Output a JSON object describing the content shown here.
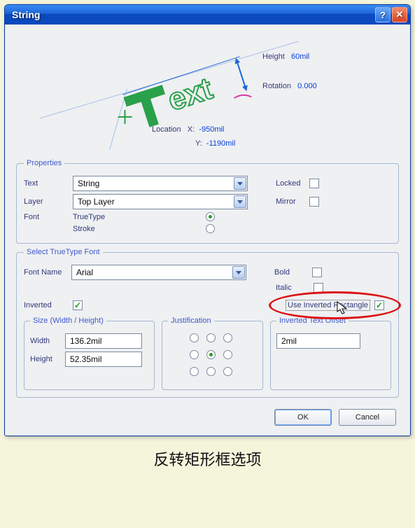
{
  "window": {
    "title": "String"
  },
  "preview": {
    "text_sample": "Text",
    "height_label": "Height",
    "height_value": "60mil",
    "rotation_label": "Rotation",
    "rotation_value": "0.000",
    "location_label": "Location",
    "x_label": "X:",
    "x_value": "-950mil",
    "y_label": "Y:",
    "y_value": "-1190mil",
    "colors": {
      "t_fill": "#2aa04a",
      "ext_stroke": "#2aa04a",
      "dim_line": "#1f66d6",
      "angle_arc": "#d63aa8",
      "marker": "#2aa04a"
    }
  },
  "properties": {
    "legend": "Properties",
    "text_label": "Text",
    "text_value": "String",
    "layer_label": "Layer",
    "layer_value": "Top Layer",
    "font_label": "Font",
    "truetype_label": "TrueType",
    "truetype_checked": true,
    "stroke_label": "Stroke",
    "stroke_checked": false,
    "locked_label": "Locked",
    "locked_checked": false,
    "mirror_label": "Mirror",
    "mirror_checked": false
  },
  "ttfont": {
    "legend": "Select TrueType Font",
    "fontname_label": "Font Name",
    "fontname_value": "Arial",
    "bold_label": "Bold",
    "bold_checked": false,
    "italic_label": "Italic",
    "italic_checked": false,
    "inverted_label": "Inverted",
    "inverted_checked": true,
    "use_inv_rect_label": "Use Inverted Rectangle",
    "use_inv_rect_checked": true,
    "size": {
      "legend": "Size (Width / Height)",
      "width_label": "Width",
      "width_value": "136.2mil",
      "height_label": "Height",
      "height_value": "52.35mil"
    },
    "justification": {
      "legend": "Justification",
      "selected_index": 4
    },
    "inv_offset": {
      "legend": "Inverted Text Offset",
      "value": "2mil"
    }
  },
  "buttons": {
    "ok": "OK",
    "cancel": "Cancel"
  },
  "caption": "反转矩形框选项"
}
